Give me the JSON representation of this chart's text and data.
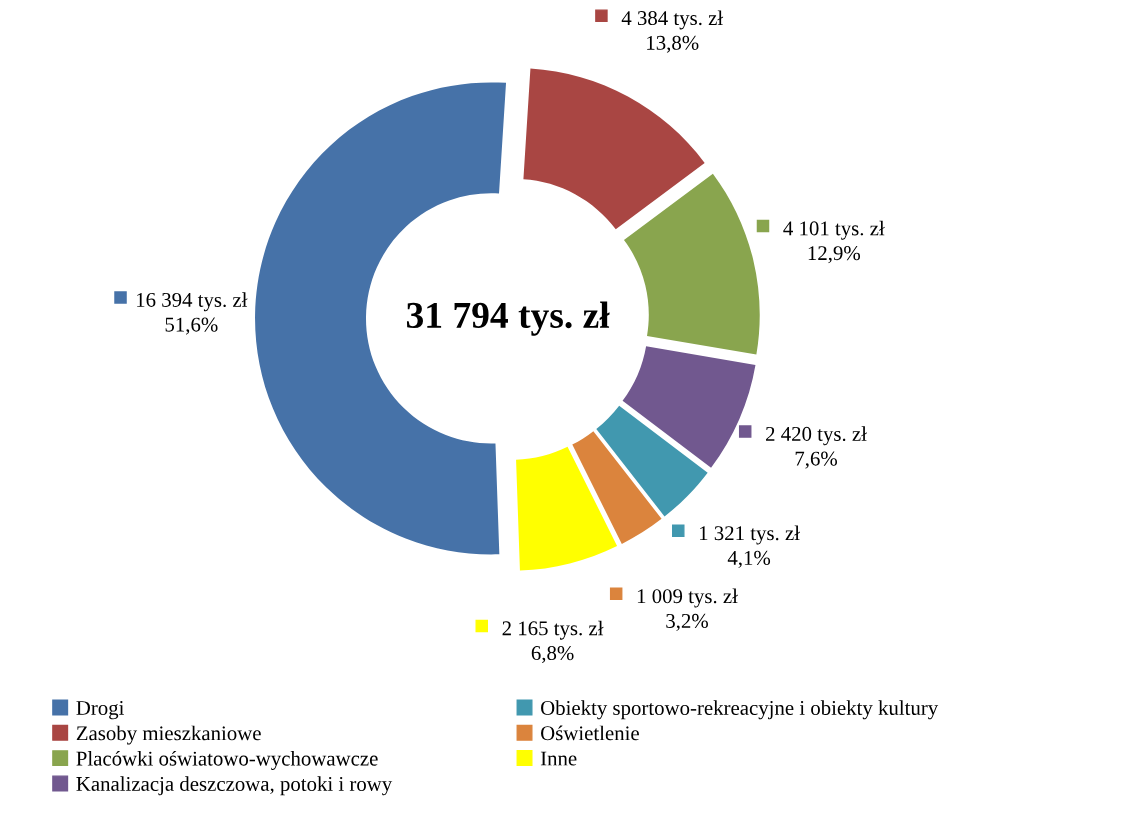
{
  "chart_data": {
    "type": "donut",
    "categories": [
      "Drogi",
      "Zasoby mieszkaniowe",
      "Placówki oświatowo-wychowawcze",
      "Kanalizacja deszczowa, potoki i rowy",
      "Obiekty sportowo-rekreacyjne i obiekty kultury",
      "Oświetlenie",
      "Inne"
    ],
    "values": [
      16394,
      4384,
      4101,
      2420,
      1321,
      1009,
      2165
    ],
    "colors": [
      "#4672a8",
      "#a94643",
      "#89a54e",
      "#71588f",
      "#4198af",
      "#db843d",
      "#ffff00"
    ],
    "value_labels": [
      "16 394 tys. zł\n51,6%",
      "4 384 tys. zł\n13,8%",
      "4 101 tys. zł\n12,9%",
      "2 420 tys. zł\n7,6%",
      "1 321 tys. zł\n4,1%",
      "1 009 tys. zł\n3,2%",
      "2 165 tys. zł\n6,8%"
    ],
    "annotations": [
      "31 794 tys. zł"
    ],
    "legend": "bottom"
  }
}
